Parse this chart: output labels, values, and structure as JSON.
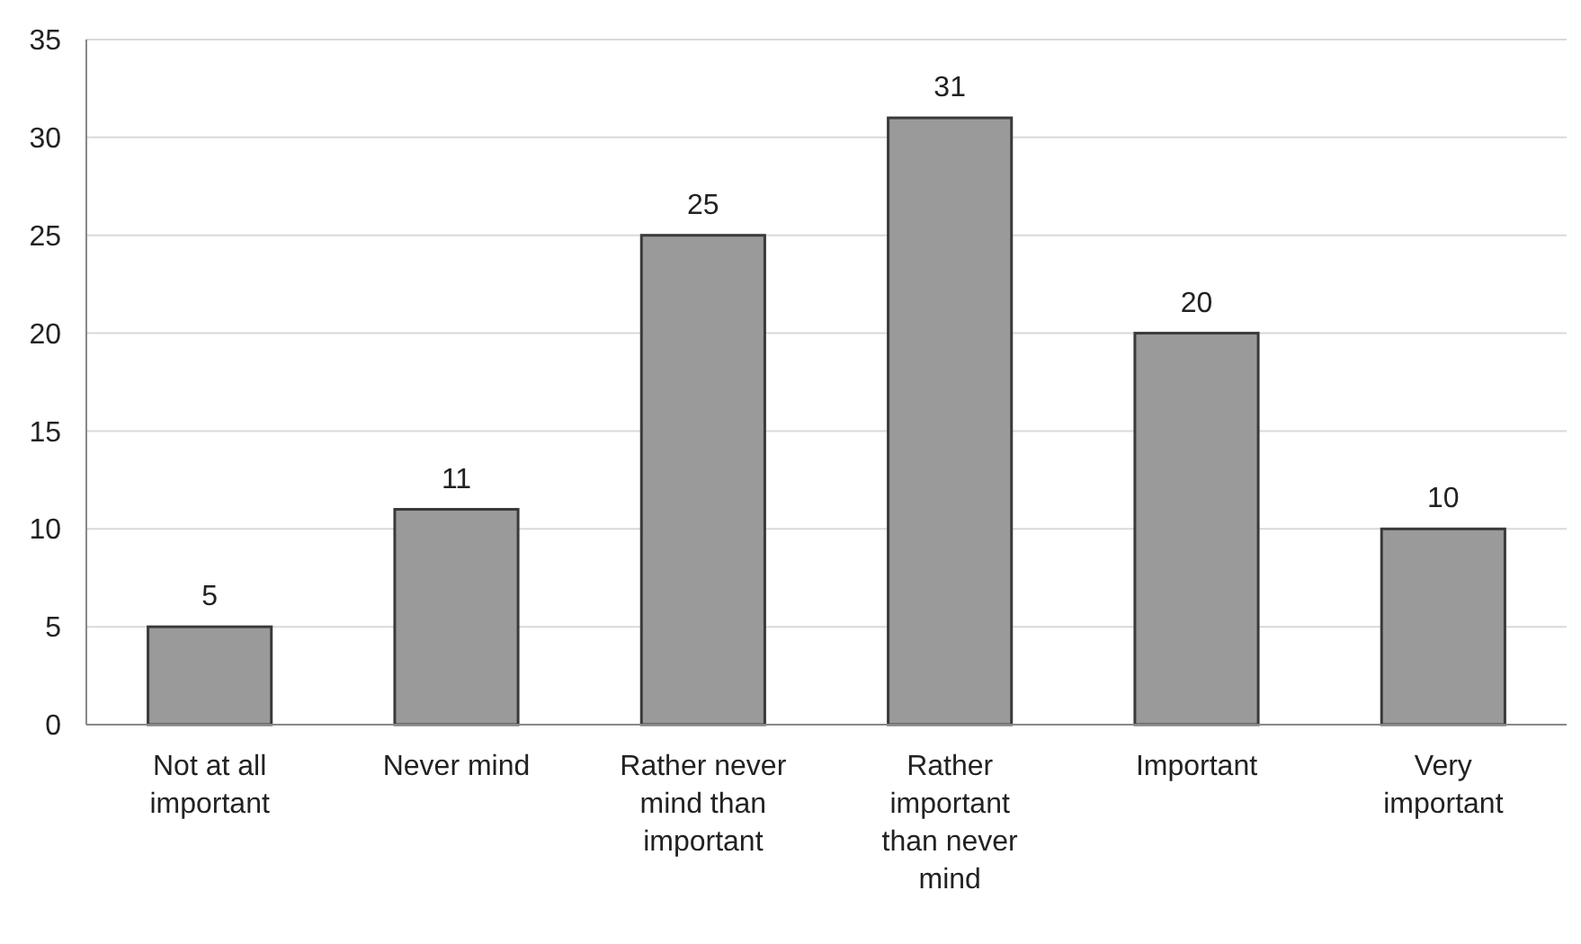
{
  "chart_data": {
    "type": "bar",
    "categories": [
      "Not at all important",
      "Never mind",
      "Rather never mind than important",
      "Rather important than never mind",
      "Important",
      "Very important"
    ],
    "values": [
      5,
      11,
      25,
      31,
      20,
      10
    ],
    "color": "#9a9a9a",
    "ylim": [
      0,
      35
    ],
    "yticks": [
      0,
      5,
      10,
      15,
      20,
      25,
      30,
      35
    ],
    "grid": "y",
    "data_labels": true
  }
}
